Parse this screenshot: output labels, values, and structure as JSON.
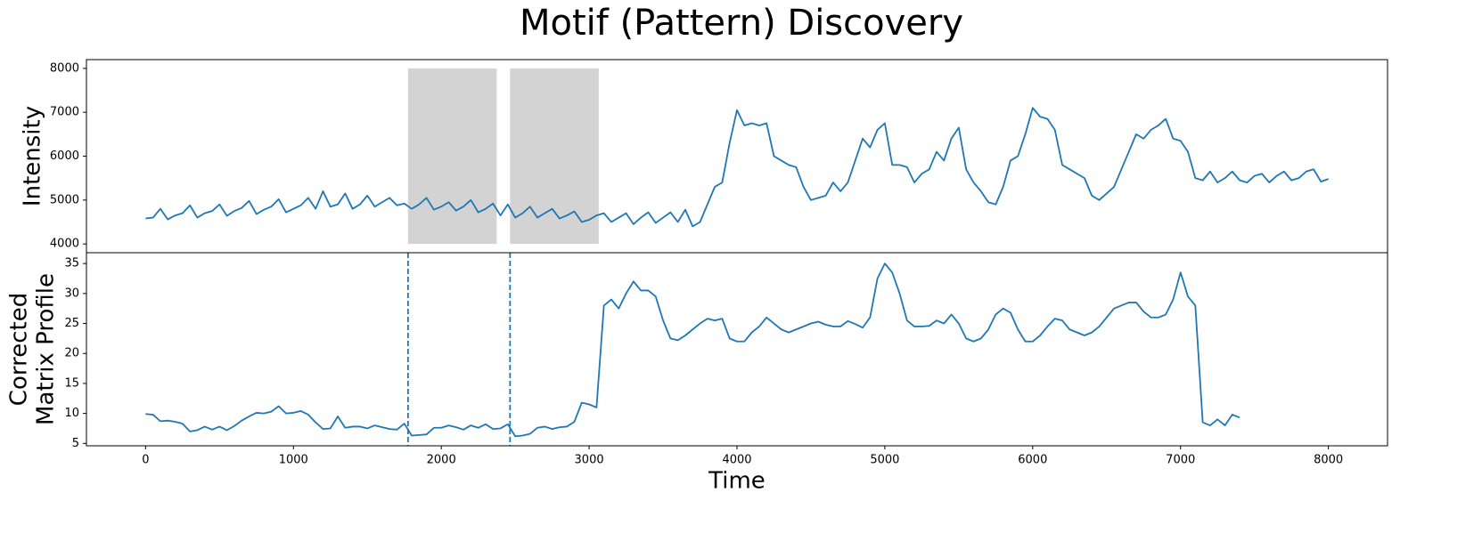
{
  "chart_data": [
    {
      "type": "line",
      "title": "Motif (Pattern) Discovery",
      "ylabel": [
        "Intensity"
      ],
      "color": "#1f77b4",
      "xlim": [
        -400,
        8400
      ],
      "ylim": [
        3800,
        8200
      ],
      "yticks": [
        4000,
        5000,
        6000,
        7000,
        8000
      ],
      "shaded_regions": [
        {
          "xlim": [
            1775,
            2375
          ],
          "ylim": [
            4000,
            8000
          ],
          "color": "#d3d3d3"
        },
        {
          "xlim": [
            2465,
            3065
          ],
          "ylim": [
            4000,
            8000
          ],
          "color": "#d3d3d3"
        }
      ],
      "x": [
        0,
        50,
        100,
        150,
        200,
        250,
        300,
        350,
        400,
        450,
        500,
        550,
        600,
        650,
        700,
        750,
        800,
        850,
        900,
        950,
        1000,
        1050,
        1100,
        1150,
        1200,
        1250,
        1300,
        1350,
        1400,
        1450,
        1500,
        1550,
        1600,
        1650,
        1700,
        1750,
        1800,
        1850,
        1900,
        1950,
        2000,
        2050,
        2100,
        2150,
        2200,
        2250,
        2300,
        2350,
        2400,
        2450,
        2500,
        2550,
        2600,
        2650,
        2700,
        2750,
        2800,
        2850,
        2900,
        2950,
        3000,
        3050,
        3100,
        3150,
        3200,
        3250,
        3300,
        3350,
        3400,
        3450,
        3500,
        3550,
        3600,
        3650,
        3700,
        3750,
        3800,
        3850,
        3900,
        3950,
        4000,
        4050,
        4100,
        4150,
        4200,
        4250,
        4300,
        4350,
        4400,
        4450,
        4500,
        4550,
        4600,
        4650,
        4700,
        4750,
        4800,
        4850,
        4900,
        4950,
        5000,
        5050,
        5100,
        5150,
        5200,
        5250,
        5300,
        5350,
        5400,
        5450,
        5500,
        5550,
        5600,
        5650,
        5700,
        5750,
        5800,
        5850,
        5900,
        5950,
        6000,
        6050,
        6100,
        6150,
        6200,
        6250,
        6300,
        6350,
        6400,
        6450,
        6500,
        6550,
        6600,
        6650,
        6700,
        6750,
        6800,
        6850,
        6900,
        6950,
        7000,
        7050,
        7100,
        7150,
        7200,
        7250,
        7300,
        7350,
        7400,
        7450,
        7500,
        7550,
        7600,
        7650,
        7700,
        7750,
        7800,
        7850,
        7900,
        7950,
        8000
      ],
      "values": [
        4580,
        4600,
        4800,
        4560,
        4650,
        4700,
        4880,
        4600,
        4700,
        4750,
        4900,
        4640,
        4750,
        4820,
        4980,
        4680,
        4780,
        4850,
        5020,
        4720,
        4800,
        4880,
        5050,
        4800,
        5200,
        4850,
        4900,
        5150,
        4800,
        4900,
        5100,
        4850,
        4950,
        5050,
        4880,
        4920,
        4800,
        4900,
        5050,
        4780,
        4850,
        4950,
        4760,
        4850,
        5000,
        4720,
        4800,
        4920,
        4650,
        4900,
        4600,
        4700,
        4850,
        4600,
        4700,
        4800,
        4580,
        4650,
        4740,
        4500,
        4550,
        4650,
        4700,
        4500,
        4600,
        4700,
        4450,
        4600,
        4720,
        4480,
        4600,
        4720,
        4500,
        4780,
        4400,
        4500,
        4900,
        5300,
        5400,
        6300,
        7050,
        6700,
        6750,
        6700,
        6750,
        6000,
        5900,
        5800,
        5750,
        5300,
        5000,
        5050,
        5100,
        5400,
        5200,
        5400,
        5900,
        6400,
        6200,
        6600,
        6750,
        5800,
        5800,
        5750,
        5400,
        5600,
        5700,
        6100,
        5900,
        6400,
        6650,
        5700,
        5400,
        5200,
        4950,
        4900,
        5300,
        5900,
        6000,
        6500,
        7100,
        6900,
        6850,
        6600,
        5800,
        5700,
        5600,
        5500,
        5100,
        5000,
        5150,
        5300,
        5700,
        6100,
        6500,
        6400,
        6600,
        6700,
        6850,
        6400,
        6350,
        6100,
        5500,
        5450,
        5650,
        5400,
        5500,
        5650,
        5450,
        5400,
        5550,
        5600,
        5400,
        5550,
        5650,
        5450,
        5500,
        5650,
        5700,
        5420,
        5480
      ]
    },
    {
      "type": "line",
      "ylabel": [
        "Corrected",
        "Matrix Profile"
      ],
      "xlabel": "Time",
      "color": "#1f77b4",
      "xlim": [
        -400,
        8400
      ],
      "ylim": [
        4.6,
        36.8
      ],
      "yticks": [
        5,
        10,
        15,
        20,
        25,
        30,
        35
      ],
      "xticks": [
        0,
        1000,
        2000,
        3000,
        4000,
        5000,
        6000,
        7000,
        8000
      ],
      "vlines": [
        1775,
        2465
      ],
      "x": [
        0,
        50,
        100,
        150,
        200,
        250,
        300,
        350,
        400,
        450,
        500,
        550,
        600,
        650,
        700,
        750,
        800,
        850,
        900,
        950,
        1000,
        1050,
        1100,
        1150,
        1200,
        1250,
        1300,
        1350,
        1400,
        1450,
        1500,
        1550,
        1600,
        1650,
        1700,
        1750,
        1800,
        1850,
        1900,
        1950,
        2000,
        2050,
        2100,
        2150,
        2200,
        2250,
        2300,
        2350,
        2400,
        2450,
        2500,
        2550,
        2600,
        2650,
        2700,
        2750,
        2800,
        2850,
        2900,
        2950,
        3000,
        3050,
        3100,
        3150,
        3200,
        3250,
        3300,
        3350,
        3400,
        3450,
        3500,
        3550,
        3600,
        3650,
        3700,
        3750,
        3800,
        3850,
        3900,
        3950,
        4000,
        4050,
        4100,
        4150,
        4200,
        4250,
        4300,
        4350,
        4400,
        4450,
        4500,
        4550,
        4600,
        4650,
        4700,
        4750,
        4800,
        4850,
        4900,
        4950,
        5000,
        5050,
        5100,
        5150,
        5200,
        5250,
        5300,
        5350,
        5400,
        5450,
        5500,
        5550,
        5600,
        5650,
        5700,
        5750,
        5800,
        5850,
        5900,
        5950,
        6000,
        6050,
        6100,
        6150,
        6200,
        6250,
        6300,
        6350,
        6400,
        6450,
        6500,
        6550,
        6600,
        6650,
        6700,
        6750,
        6800,
        6850,
        6900,
        6950,
        7000,
        7050,
        7100,
        7150,
        7200,
        7250,
        7300,
        7350,
        7400
      ],
      "values": [
        9.9,
        9.8,
        8.7,
        8.8,
        8.6,
        8.3,
        7.0,
        7.2,
        7.8,
        7.3,
        7.8,
        7.2,
        7.9,
        8.8,
        9.5,
        10.1,
        10.0,
        10.3,
        11.2,
        10.0,
        10.1,
        10.4,
        9.8,
        8.5,
        7.4,
        7.5,
        9.5,
        7.6,
        7.8,
        7.8,
        7.5,
        8.0,
        7.7,
        7.4,
        7.3,
        8.3,
        6.3,
        6.4,
        6.5,
        7.6,
        7.6,
        8.0,
        7.7,
        7.3,
        8.0,
        7.6,
        8.2,
        7.4,
        7.5,
        8.2,
        6.2,
        6.3,
        6.6,
        7.6,
        7.8,
        7.4,
        7.7,
        7.8,
        8.6,
        11.8,
        11.5,
        11.0,
        28.0,
        29.0,
        27.5,
        30.0,
        32.0,
        30.5,
        30.5,
        29.5,
        25.5,
        22.5,
        22.2,
        23.0,
        24.0,
        25.0,
        25.8,
        25.5,
        25.8,
        22.5,
        22.0,
        22.0,
        23.5,
        24.5,
        26.0,
        25.0,
        24.0,
        23.5,
        24.0,
        24.5,
        25.0,
        25.3,
        24.8,
        24.5,
        24.5,
        25.4,
        24.9,
        24.3,
        26.0,
        32.5,
        35.0,
        33.5,
        30.0,
        25.5,
        24.5,
        24.5,
        24.6,
        25.5,
        25.0,
        26.5,
        25.0,
        22.5,
        22.0,
        22.5,
        24.0,
        26.5,
        27.5,
        26.8,
        24.0,
        22.0,
        22.0,
        23.0,
        24.5,
        25.8,
        25.5,
        24.0,
        23.5,
        23.0,
        23.5,
        24.5,
        26.0,
        27.5,
        28.0,
        28.5,
        28.5,
        27.0,
        26.0,
        26.0,
        26.5,
        29.0,
        33.5,
        29.5,
        28.0,
        8.5,
        8.0,
        9.0,
        8.0,
        9.8,
        9.3
      ]
    }
  ]
}
